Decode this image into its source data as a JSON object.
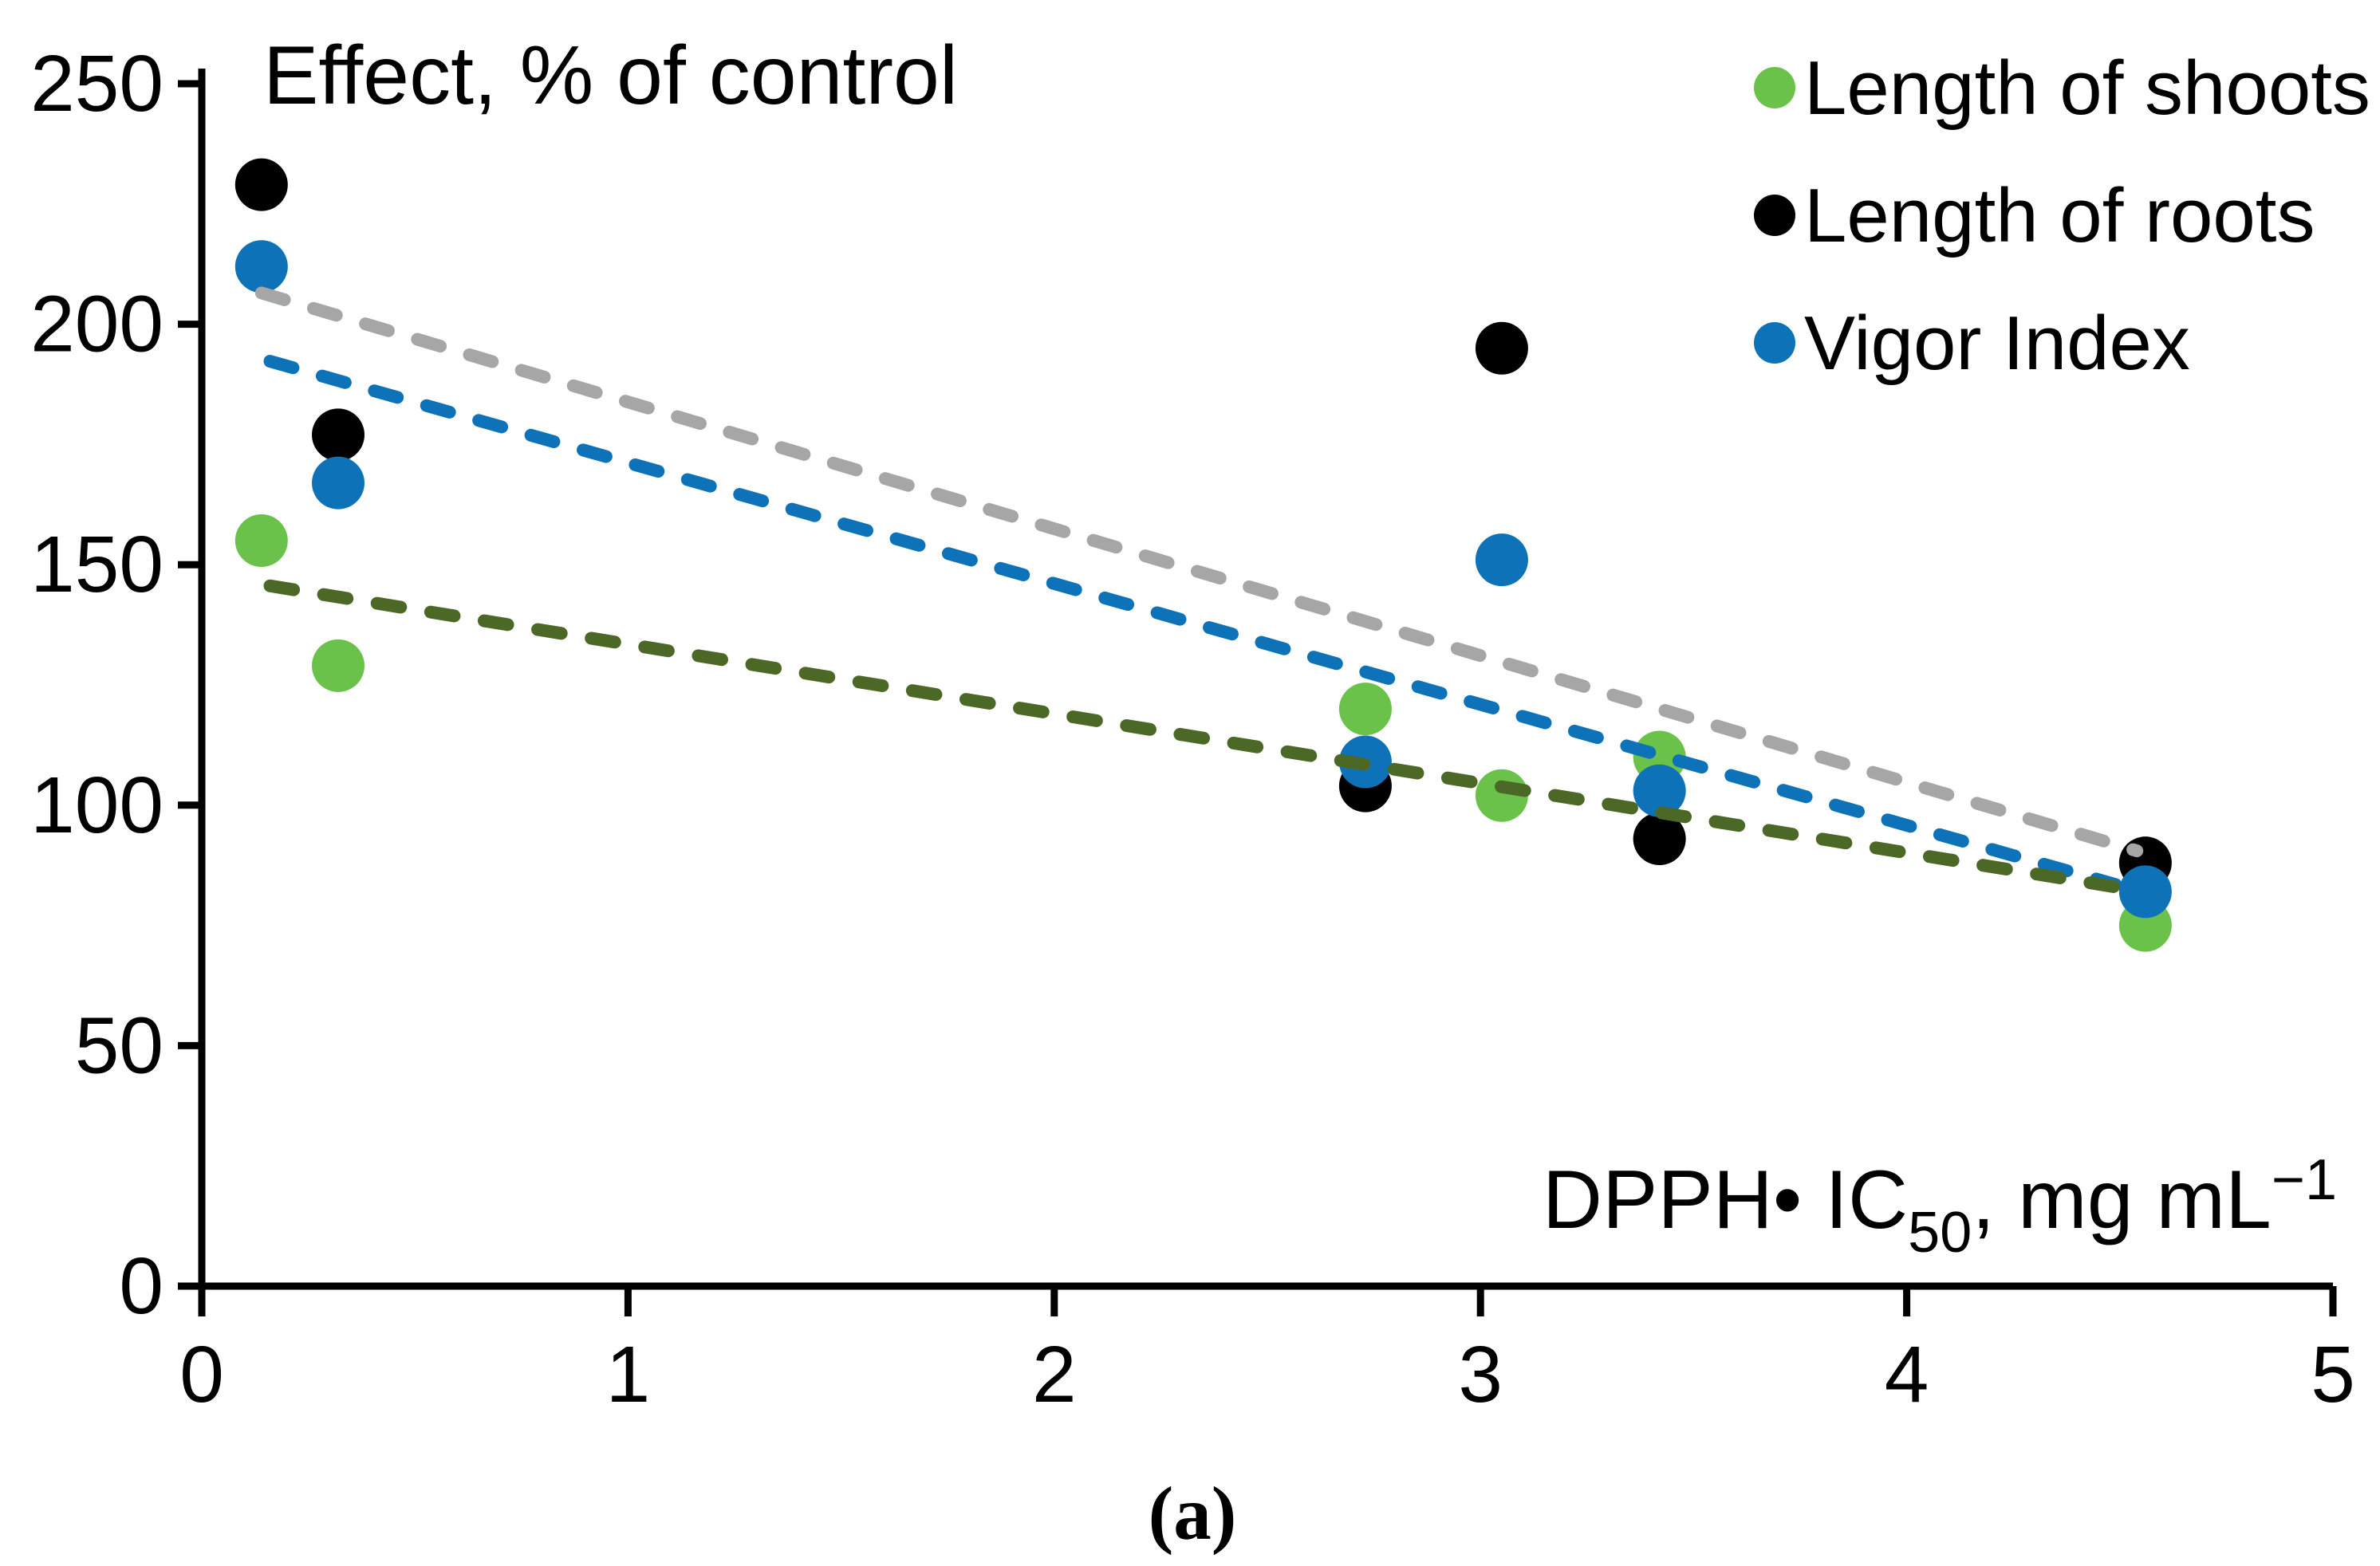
{
  "figure": {
    "caption": "(a)"
  },
  "chart_data": {
    "type": "scatter",
    "title": "Effect, % of control",
    "ylabel": "Effect, % of control",
    "xlabel_plain": "DPPH• IC50, mg mL−1",
    "xlabel_parts": [
      "DPPH",
      "•",
      " IC",
      "50",
      ", mg mL",
      "−1"
    ],
    "xlim": [
      0,
      5
    ],
    "ylim": [
      0,
      250
    ],
    "xticks": [
      "0",
      "1",
      "2",
      "3",
      "4",
      "5"
    ],
    "yticks": [
      "0",
      "50",
      "100",
      "150",
      "200",
      "250"
    ],
    "grid": false,
    "legend_position": "top-right",
    "marker_style": "filled-circle",
    "series": [
      {
        "name": "Length of shoots",
        "color": "#6BC24A",
        "x": [
          0.14,
          0.32,
          2.73,
          3.05,
          3.42,
          4.56
        ],
        "y": [
          155,
          129,
          120,
          102,
          110,
          75
        ]
      },
      {
        "name": "Length of roots",
        "color": "#000000",
        "x": [
          0.14,
          0.32,
          2.73,
          3.05,
          3.42,
          4.56
        ],
        "y": [
          229,
          177,
          104,
          195,
          93,
          88
        ]
      },
      {
        "name": "Vigor Index",
        "color": "#0E72B8",
        "x": [
          0.14,
          0.32,
          2.73,
          3.05,
          3.42,
          4.56
        ],
        "y": [
          212,
          167,
          109,
          151,
          103,
          82
        ]
      }
    ],
    "trendlines": [
      {
        "series": "Length of roots",
        "style": "dashed",
        "color": "#A6A6A6",
        "x1": 0.14,
        "y1": 206.5,
        "x2": 4.54,
        "y2": 90.5
      },
      {
        "series": "Vigor Index",
        "style": "dashed",
        "color": "#0E72B8",
        "x1": 0.16,
        "y1": 192.3,
        "x2": 4.49,
        "y2": 83.5
      },
      {
        "series": "Length of shoots",
        "style": "dashed",
        "color": "#4C6827",
        "x1": 0.16,
        "y1": 145.6,
        "x2": 4.49,
        "y2": 83.0
      }
    ]
  }
}
